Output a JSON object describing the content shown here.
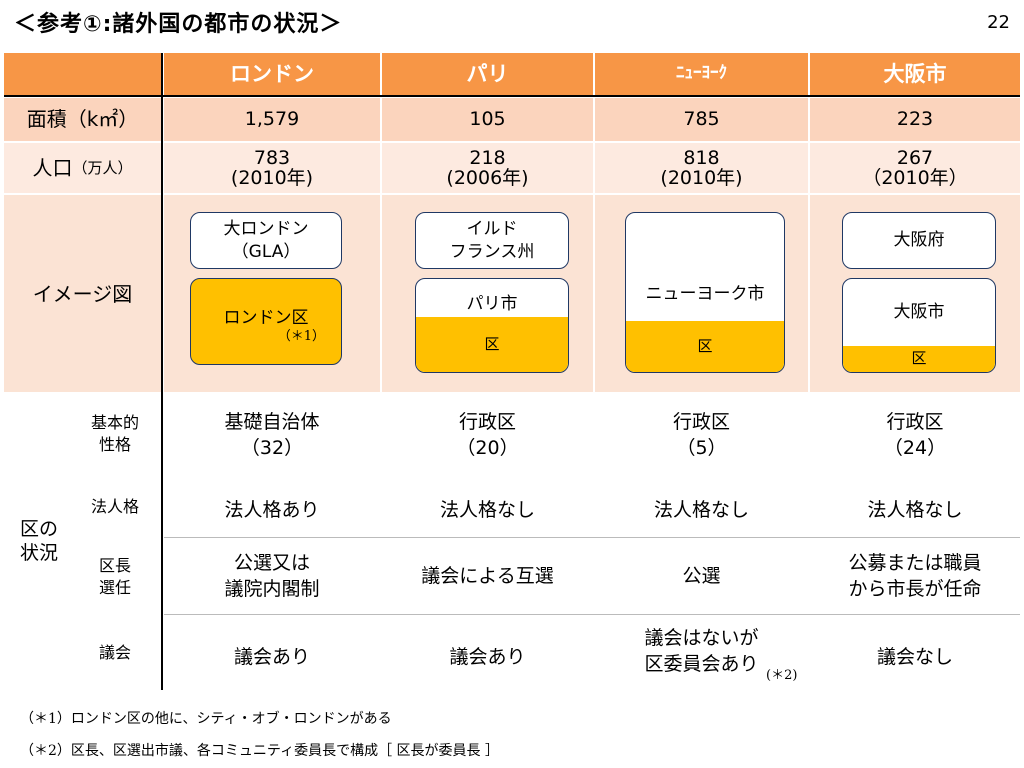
{
  "page": {
    "title": "＜参考①:諸外国の都市の状況＞",
    "number": "22"
  },
  "columns": [
    "ロンドン",
    "パリ",
    "ﾆｭｰﾖｰｸ",
    "大阪市"
  ],
  "rows": {
    "area": {
      "label": "面積（k㎡）",
      "values": [
        "1,579",
        "105",
        "785",
        "223"
      ]
    },
    "population": {
      "label": "人口",
      "unit": "（万人）",
      "values": [
        {
          "num": "783",
          "year": "(2010年)"
        },
        {
          "num": "218",
          "year": "(2006年)"
        },
        {
          "num": "818",
          "year": "(2010年)"
        },
        {
          "num": "267",
          "year": "（2010年）"
        }
      ]
    },
    "image": {
      "label": "イメージ図",
      "london": {
        "outer": "大ロンドン",
        "outer_sub": "（GLA）",
        "inner": "ロンドン区",
        "note": "（＊1）"
      },
      "paris": {
        "outer": "イルド",
        "outer_sub": "フランス州",
        "city": "パリ市",
        "ward": "区"
      },
      "newyork": {
        "city": "ニューヨーク市",
        "ward": "区"
      },
      "osaka": {
        "outer": "大阪府",
        "city": "大阪市",
        "ward": "区"
      }
    }
  },
  "ward_section": {
    "label": "区の\n状況",
    "rows": [
      {
        "label": "基本的\n性格",
        "values": [
          "基礎自治体\n（32）",
          "行政区\n（20）",
          "行政区\n（5）",
          "行政区\n（24）"
        ]
      },
      {
        "label": "法人格",
        "values": [
          "法人格あり",
          "法人格なし",
          "法人格なし",
          "法人格なし"
        ]
      },
      {
        "label": "区長\n選任",
        "values": [
          "公選又は\n議院内閣制",
          "議会による互選",
          "公選",
          "公募または職員\nから市長が任命"
        ]
      },
      {
        "label": "議会",
        "values": [
          "議会あり",
          "議会あり",
          "議会はないが\n区委員会あり",
          "議会なし"
        ],
        "ny_note": "(＊2)"
      }
    ]
  },
  "footnotes": [
    "（＊1）ロンドン区の他に、シティ・オブ・ロンドンがある",
    "（＊2）区長、区選出市議、各コミュニティ委員長で構成［ 区長が委員長 ］"
  ]
}
